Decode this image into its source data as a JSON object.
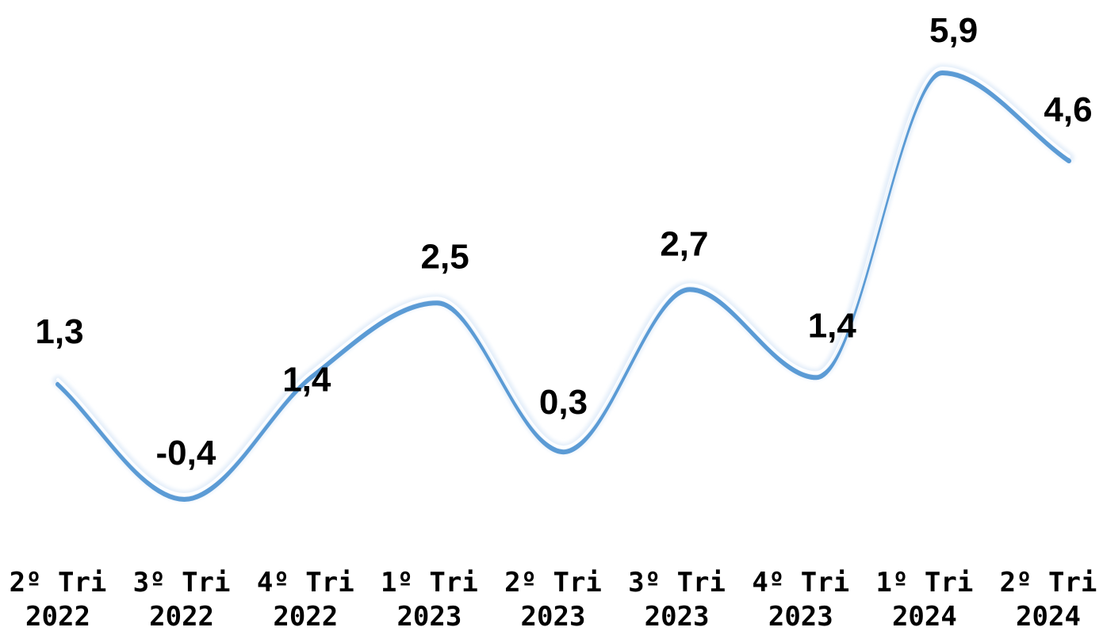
{
  "chart_data": {
    "type": "line",
    "title": "",
    "xlabel": "",
    "ylabel": "",
    "categories": [
      [
        "2º Tri",
        "2022"
      ],
      [
        "3º Tri",
        "2022"
      ],
      [
        "4º Tri",
        "2022"
      ],
      [
        "1º Tri",
        "2023"
      ],
      [
        "2º Tri",
        "2023"
      ],
      [
        "3º Tri",
        "2023"
      ],
      [
        "4º Tri",
        "2023"
      ],
      [
        "1º Tri",
        "2024"
      ],
      [
        "2º Tri",
        "2024"
      ]
    ],
    "values": [
      1.3,
      -0.4,
      1.4,
      2.5,
      0.3,
      2.7,
      1.4,
      5.9,
      4.6
    ],
    "data_labels": [
      "1,3",
      "-0,4",
      "1,4",
      "2,5",
      "0,3",
      "2,7",
      "1,4",
      "5,9",
      "4,6"
    ],
    "ylim": [
      -0.4,
      5.9
    ],
    "grid": false,
    "legend": "none",
    "line_color": "#5b9bd5",
    "smooth": true
  }
}
